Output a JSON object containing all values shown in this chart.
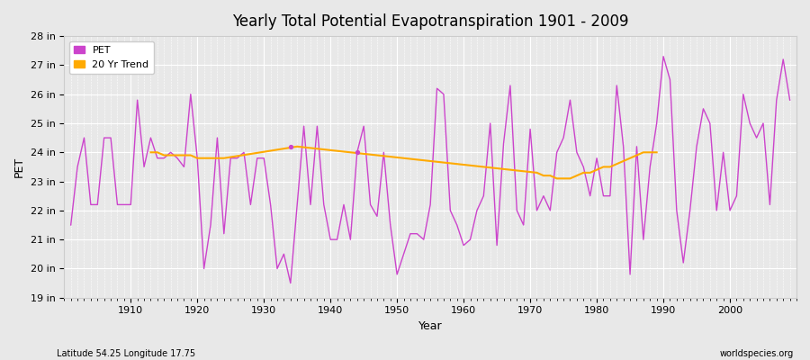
{
  "title": "Yearly Total Potential Evapotranspiration 1901 - 2009",
  "xlabel": "Year",
  "ylabel": "PET",
  "footnote_left": "Latitude 54.25 Longitude 17.75",
  "footnote_right": "worldspecies.org",
  "bg_color": "#e8e8e8",
  "plot_bg_color": "#e8e8e8",
  "pet_color": "#cc44cc",
  "trend_color": "#ffaa00",
  "ylim": [
    19,
    28
  ],
  "xlim": [
    1901,
    2009
  ],
  "yticks": [
    19,
    20,
    21,
    22,
    23,
    24,
    25,
    26,
    27,
    28
  ],
  "ytick_labels": [
    "19 in",
    "20 in",
    "21 in",
    "22 in",
    "23 in",
    "24 in",
    "25 in",
    "26 in",
    "27 in",
    "28 in"
  ],
  "xticks": [
    1910,
    1920,
    1930,
    1940,
    1950,
    1960,
    1970,
    1980,
    1990,
    2000
  ],
  "years": [
    1901,
    1902,
    1903,
    1904,
    1905,
    1906,
    1907,
    1908,
    1909,
    1910,
    1911,
    1912,
    1913,
    1914,
    1915,
    1916,
    1917,
    1918,
    1919,
    1920,
    1921,
    1922,
    1923,
    1924,
    1925,
    1926,
    1927,
    1928,
    1929,
    1930,
    1931,
    1932,
    1933,
    1934,
    1935,
    1936,
    1937,
    1938,
    1939,
    1940,
    1941,
    1942,
    1943,
    1944,
    1945,
    1946,
    1947,
    1948,
    1949,
    1950,
    1951,
    1952,
    1953,
    1954,
    1955,
    1956,
    1957,
    1958,
    1959,
    1960,
    1961,
    1962,
    1963,
    1964,
    1965,
    1966,
    1967,
    1968,
    1969,
    1970,
    1971,
    1972,
    1973,
    1974,
    1975,
    1976,
    1977,
    1978,
    1979,
    1980,
    1981,
    1982,
    1983,
    1984,
    1985,
    1986,
    1987,
    1988,
    1989,
    1990,
    1991,
    1992,
    1993,
    1994,
    1995,
    1996,
    1997,
    1998,
    1999,
    2000,
    2001,
    2002,
    2003,
    2004,
    2005,
    2006,
    2007,
    2008,
    2009
  ],
  "pet_values": [
    21.5,
    23.5,
    24.5,
    22.2,
    22.2,
    24.5,
    24.5,
    22.2,
    22.2,
    22.2,
    25.8,
    23.5,
    24.5,
    23.8,
    23.8,
    24.0,
    23.8,
    23.5,
    26.0,
    23.8,
    20.0,
    21.5,
    24.5,
    21.2,
    23.8,
    23.8,
    24.0,
    22.2,
    23.8,
    23.8,
    22.2,
    20.0,
    20.5,
    19.5,
    22.2,
    24.9,
    22.2,
    24.9,
    22.2,
    21.0,
    21.0,
    22.2,
    21.0,
    24.0,
    24.9,
    22.2,
    21.8,
    24.0,
    21.5,
    19.8,
    20.5,
    21.2,
    21.2,
    21.0,
    22.2,
    26.2,
    26.0,
    22.0,
    21.5,
    20.8,
    21.0,
    22.0,
    22.5,
    25.0,
    20.8,
    24.3,
    26.3,
    22.0,
    21.5,
    24.8,
    22.0,
    22.5,
    22.0,
    24.0,
    24.5,
    25.8,
    24.0,
    23.5,
    22.5,
    23.8,
    22.5,
    22.5,
    26.3,
    24.2,
    19.8,
    24.2,
    21.0,
    23.5,
    25.0,
    27.3,
    26.5,
    22.0,
    20.2,
    22.0,
    24.2,
    25.5,
    25.0,
    22.0,
    24.0,
    22.0,
    22.5,
    26.0,
    25.0,
    24.5,
    25.0,
    22.2,
    25.8,
    27.2,
    25.8
  ],
  "trend_years": [
    1913,
    1914,
    1915,
    1916,
    1917,
    1918,
    1919,
    1920,
    1921,
    1922,
    1923,
    1924,
    1935,
    1971,
    1972,
    1973,
    1974,
    1975,
    1976,
    1977,
    1978,
    1979,
    1980,
    1981,
    1982,
    1983,
    1984,
    1985,
    1986,
    1987,
    1988,
    1989
  ],
  "trend_values": [
    24.0,
    24.0,
    23.9,
    23.9,
    23.9,
    23.9,
    23.9,
    23.8,
    23.8,
    23.8,
    23.8,
    23.8,
    24.2,
    23.3,
    23.2,
    23.2,
    23.1,
    23.1,
    23.1,
    23.2,
    23.3,
    23.3,
    23.4,
    23.5,
    23.5,
    23.6,
    23.7,
    23.8,
    23.9,
    24.0,
    24.0,
    24.0
  ]
}
